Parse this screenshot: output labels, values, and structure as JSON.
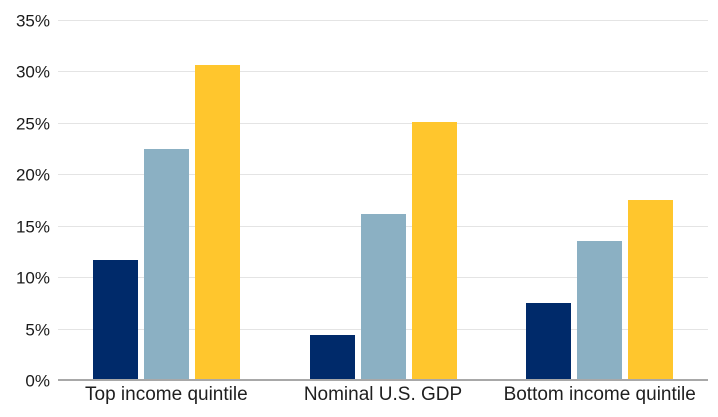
{
  "chart_data": {
    "type": "bar",
    "title": "",
    "xlabel": "",
    "ylabel": "",
    "categories": [
      "Top income quintile",
      "Nominal U.S. GDP",
      "Bottom income quintile"
    ],
    "series": [
      {
        "name": "series-1-dark-navy",
        "color": "#002A6A",
        "values": [
          11.6,
          4.3,
          7.4
        ]
      },
      {
        "name": "series-2-light-blue",
        "color": "#8BB0C3",
        "values": [
          22.5,
          16.1,
          13.5
        ]
      },
      {
        "name": "series-3-yellow",
        "color": "#FFC62D",
        "values": [
          30.7,
          25.1,
          17.5
        ]
      }
    ],
    "ylim": [
      0,
      35
    ],
    "y_ticks": [
      {
        "value": 0,
        "label": "0%"
      },
      {
        "value": 5,
        "label": "5%"
      },
      {
        "value": 10,
        "label": "10%"
      },
      {
        "value": 15,
        "label": "15%"
      },
      {
        "value": 20,
        "label": "20%"
      },
      {
        "value": 25,
        "label": "25%"
      },
      {
        "value": 30,
        "label": "30%"
      },
      {
        "value": 35,
        "label": "35%"
      }
    ],
    "grid": true,
    "legend_position": "none"
  },
  "colors": {
    "background": "#FFFFFF",
    "gridline": "#E4E4E4",
    "axis_line": "#A8A8A8",
    "tick_text": "#1A1A1A"
  }
}
